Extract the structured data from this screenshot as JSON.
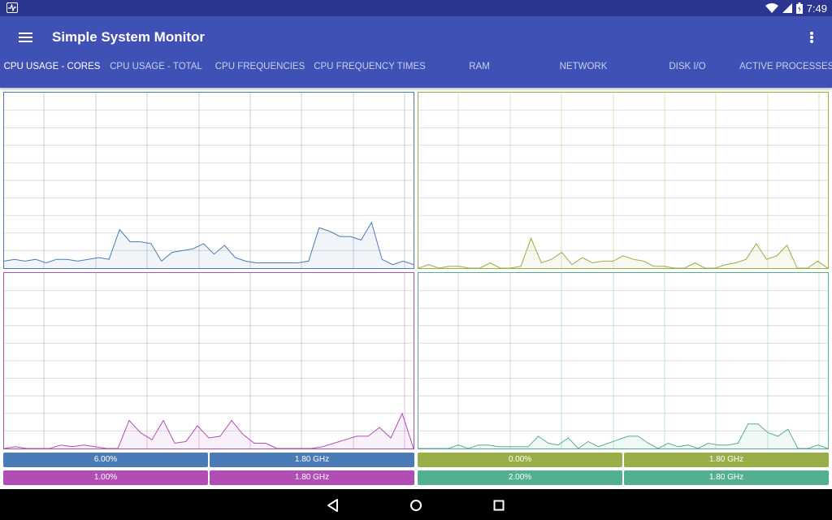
{
  "status_bar": {
    "time": "7:49",
    "icons": [
      "activity-icon",
      "wifi-icon",
      "signal-icon",
      "battery-icon"
    ]
  },
  "app_bar": {
    "title": "Simple System Monitor",
    "color": "#3f51b5"
  },
  "tabs": [
    {
      "label": "CPU USAGE - CORES",
      "active": true
    },
    {
      "label": "CPU USAGE - TOTAL",
      "active": false
    },
    {
      "label": "CPU FREQUENCIES",
      "active": false
    },
    {
      "label": "CPU FREQUENCY TIMES",
      "active": false
    },
    {
      "label": "RAM",
      "active": false
    },
    {
      "label": "NETWORK",
      "active": false
    },
    {
      "label": "DISK I/O",
      "active": false
    },
    {
      "label": "ACTIVE PROCESSES",
      "active": false
    }
  ],
  "cores": [
    {
      "name": "core-0",
      "color": "#4a7ab7",
      "usage": "6.00%",
      "frequency": "1.80 GHz",
      "samples": [
        4,
        5,
        4,
        5,
        3,
        5,
        5,
        4,
        5,
        6,
        5,
        22,
        15,
        15,
        14,
        4,
        9,
        10,
        11,
        14,
        8,
        13,
        6,
        4,
        3,
        3,
        3,
        3,
        3,
        4,
        23,
        21,
        18,
        18,
        16,
        26,
        5,
        2,
        4,
        2
      ]
    },
    {
      "name": "core-1",
      "color": "#9aae47",
      "usage": "0.00%",
      "frequency": "1.80 GHz",
      "samples": [
        0,
        2,
        0,
        1,
        1,
        0,
        0,
        3,
        0,
        0,
        1,
        17,
        3,
        5,
        9,
        2,
        6,
        3,
        4,
        4,
        7,
        5,
        4,
        1,
        1,
        0,
        0,
        3,
        0,
        0,
        2,
        3,
        5,
        14,
        5,
        7,
        13,
        0,
        0,
        4,
        0
      ]
    },
    {
      "name": "core-2",
      "color": "#b04eb5",
      "usage": "1.00%",
      "frequency": "1.80 GHz",
      "samples": [
        0,
        1,
        0,
        0,
        0,
        2,
        1,
        2,
        1,
        0,
        0,
        16,
        9,
        5,
        16,
        3,
        4,
        13,
        6,
        7,
        16,
        8,
        3,
        3,
        0,
        0,
        0,
        0,
        1,
        3,
        5,
        7,
        7,
        12,
        6,
        20,
        0
      ]
    },
    {
      "name": "core-3",
      "color": "#52b08e",
      "usage": "2.00%",
      "frequency": "1.80 GHz",
      "samples": [
        0,
        0,
        0,
        0,
        2,
        0,
        2,
        2,
        1,
        1,
        1,
        1,
        7,
        3,
        2,
        6,
        0,
        4,
        1,
        3,
        5,
        7,
        7,
        3,
        0,
        3,
        1,
        2,
        0,
        3,
        2,
        2,
        3,
        14,
        14,
        9,
        7,
        11,
        0,
        0,
        2,
        0
      ]
    }
  ],
  "chart_data": [
    {
      "type": "area",
      "title": "",
      "ylim": [
        0,
        100
      ],
      "grid": true,
      "series": [
        {
          "values": [
            4,
            5,
            4,
            5,
            3,
            5,
            5,
            4,
            5,
            6,
            5,
            22,
            15,
            15,
            14,
            4,
            9,
            10,
            11,
            14,
            8,
            13,
            6,
            4,
            3,
            3,
            3,
            3,
            3,
            4,
            23,
            21,
            18,
            18,
            16,
            26,
            5,
            2,
            4,
            2
          ]
        }
      ]
    },
    {
      "type": "area",
      "title": "",
      "ylim": [
        0,
        100
      ],
      "grid": true,
      "series": [
        {
          "values": [
            0,
            2,
            0,
            1,
            1,
            0,
            0,
            3,
            0,
            0,
            1,
            17,
            3,
            5,
            9,
            2,
            6,
            3,
            4,
            4,
            7,
            5,
            4,
            1,
            1,
            0,
            0,
            3,
            0,
            0,
            2,
            3,
            5,
            14,
            5,
            7,
            13,
            0,
            0,
            4,
            0
          ]
        }
      ]
    },
    {
      "type": "area",
      "title": "",
      "ylim": [
        0,
        100
      ],
      "grid": true,
      "series": [
        {
          "values": [
            0,
            1,
            0,
            0,
            0,
            2,
            1,
            2,
            1,
            0,
            0,
            16,
            9,
            5,
            16,
            3,
            4,
            13,
            6,
            7,
            16,
            8,
            3,
            3,
            0,
            0,
            0,
            0,
            1,
            3,
            5,
            7,
            7,
            12,
            6,
            20,
            0
          ]
        }
      ]
    },
    {
      "type": "area",
      "title": "",
      "ylim": [
        0,
        100
      ],
      "grid": true,
      "series": [
        {
          "values": [
            0,
            0,
            0,
            0,
            2,
            0,
            2,
            2,
            1,
            1,
            1,
            1,
            7,
            3,
            2,
            6,
            0,
            4,
            1,
            3,
            5,
            7,
            7,
            3,
            0,
            3,
            1,
            2,
            0,
            3,
            2,
            2,
            3,
            14,
            14,
            9,
            7,
            11,
            0,
            0,
            2,
            0
          ]
        }
      ]
    }
  ],
  "nav_bar": {
    "buttons": [
      "back-icon",
      "home-icon",
      "recents-icon"
    ]
  }
}
